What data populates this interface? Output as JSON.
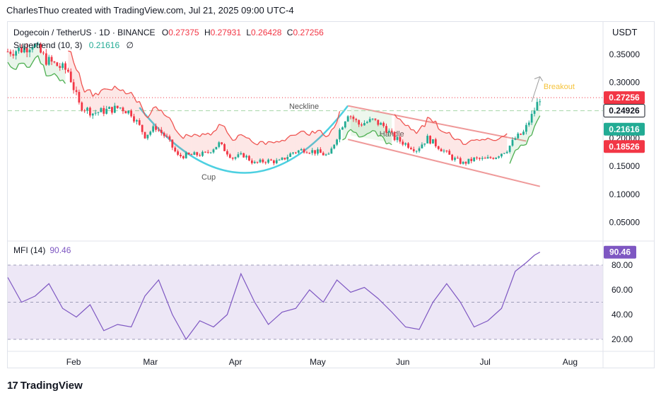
{
  "header": {
    "text": "CharlesThuo created with TradingView.com, Jul 21, 2025 09:00 UTC-4"
  },
  "legend": {
    "symbol": "Dogecoin / TetherUS · 1D · BINANCE",
    "o_label": "O",
    "o": "0.27375",
    "h_label": "H",
    "h": "0.27931",
    "l_label": "L",
    "l": "0.26428",
    "c_label": "C",
    "c": "0.27256",
    "supertrend_label": "Supertrend (10, 3)",
    "supertrend_value": "0.21616",
    "supertrend_extra": "∅"
  },
  "currency": "USDT",
  "mfi_legend": {
    "label": "MFI (14)",
    "value": "90.46"
  },
  "brand": {
    "logo": "17",
    "name": "TradingView"
  },
  "colors": {
    "up": "#22ab94",
    "down": "#f23645",
    "cup": "#4dd0e1",
    "channel": "#ef9a9a",
    "supertrend_up": "#4caf50",
    "supertrend_down": "#ef5350",
    "mfi": "#7e57c2",
    "mfi_band": "#ede7f6",
    "neckline": "#a5d6a7",
    "breakout": "#f5c33b"
  },
  "chart_data": [
    {
      "type": "candlestick",
      "title": "Dogecoin / TetherUS · 1D · BINANCE",
      "x_ticks": [
        "Feb",
        "Mar",
        "Apr",
        "May",
        "Jun",
        "Jul",
        "Aug"
      ],
      "y_ticks": [
        "0.35000",
        "0.30000",
        "0.25000",
        "0.20000",
        "0.15000",
        "0.10000",
        "0.05000"
      ],
      "ylim": [
        0.02,
        0.4
      ],
      "price_labels": [
        {
          "value": "0.27256",
          "color": "#f23645"
        },
        {
          "value": "0.24926",
          "color": "#131722"
        },
        {
          "value": "0.21616",
          "color": "#22ab94"
        },
        {
          "value": "0.18526",
          "color": "#f23645"
        }
      ],
      "annotations": [
        "Neckline",
        "Cup",
        "Handle",
        "Breakout"
      ],
      "close_path": [
        [
          "2025-01-08",
          0.355
        ],
        [
          "2025-01-14",
          0.36
        ],
        [
          "2025-01-17",
          0.37
        ],
        [
          "2025-01-22",
          0.34
        ],
        [
          "2025-01-26",
          0.33
        ],
        [
          "2025-01-30",
          0.32
        ],
        [
          "2025-02-03",
          0.26
        ],
        [
          "2025-02-08",
          0.245
        ],
        [
          "2025-02-13",
          0.25
        ],
        [
          "2025-02-18",
          0.255
        ],
        [
          "2025-02-22",
          0.245
        ],
        [
          "2025-02-27",
          0.205
        ],
        [
          "2025-03-03",
          0.22
        ],
        [
          "2025-03-07",
          0.2
        ],
        [
          "2025-03-11",
          0.168
        ],
        [
          "2025-03-16",
          0.17
        ],
        [
          "2025-03-21",
          0.172
        ],
        [
          "2025-03-26",
          0.19
        ],
        [
          "2025-03-31",
          0.165
        ],
        [
          "2025-04-04",
          0.17
        ],
        [
          "2025-04-08",
          0.155
        ],
        [
          "2025-04-12",
          0.16
        ],
        [
          "2025-04-17",
          0.158
        ],
        [
          "2025-04-22",
          0.175
        ],
        [
          "2025-04-26",
          0.18
        ],
        [
          "2025-05-01",
          0.175
        ],
        [
          "2025-05-05",
          0.168
        ],
        [
          "2025-05-09",
          0.215
        ],
        [
          "2025-05-12",
          0.245
        ],
        [
          "2025-05-16",
          0.225
        ],
        [
          "2025-05-21",
          0.232
        ],
        [
          "2025-05-25",
          0.222
        ],
        [
          "2025-05-29",
          0.2
        ],
        [
          "2025-06-02",
          0.19
        ],
        [
          "2025-06-06",
          0.18
        ],
        [
          "2025-06-10",
          0.2
        ],
        [
          "2025-06-14",
          0.185
        ],
        [
          "2025-06-19",
          0.165
        ],
        [
          "2025-06-23",
          0.155
        ],
        [
          "2025-06-27",
          0.163
        ],
        [
          "2025-07-01",
          0.162
        ],
        [
          "2025-07-05",
          0.168
        ],
        [
          "2025-07-09",
          0.18
        ],
        [
          "2025-07-12",
          0.2
        ],
        [
          "2025-07-15",
          0.21
        ],
        [
          "2025-07-18",
          0.24
        ],
        [
          "2025-07-21",
          0.27256
        ]
      ]
    },
    {
      "type": "line",
      "title": "MFI (14)",
      "y_ticks": [
        "80.00",
        "60.00",
        "40.00",
        "20.00"
      ],
      "ylim": [
        15,
        95
      ],
      "bands": [
        20,
        50,
        80
      ],
      "last_value": "90.46",
      "x": [
        "2025-01-08",
        "2025-01-13",
        "2025-01-18",
        "2025-01-23",
        "2025-01-28",
        "2025-02-02",
        "2025-02-07",
        "2025-02-12",
        "2025-02-17",
        "2025-02-22",
        "2025-02-27",
        "2025-03-04",
        "2025-03-09",
        "2025-03-14",
        "2025-03-19",
        "2025-03-24",
        "2025-03-29",
        "2025-04-03",
        "2025-04-08",
        "2025-04-13",
        "2025-04-18",
        "2025-04-23",
        "2025-04-28",
        "2025-05-03",
        "2025-05-08",
        "2025-05-13",
        "2025-05-18",
        "2025-05-23",
        "2025-05-28",
        "2025-06-02",
        "2025-06-07",
        "2025-06-12",
        "2025-06-17",
        "2025-06-22",
        "2025-06-27",
        "2025-07-02",
        "2025-07-07",
        "2025-07-12",
        "2025-07-16",
        "2025-07-19",
        "2025-07-21"
      ],
      "values": [
        70,
        50,
        55,
        65,
        45,
        38,
        48,
        27,
        32,
        30,
        55,
        68,
        40,
        20,
        35,
        30,
        40,
        73,
        50,
        32,
        42,
        45,
        60,
        50,
        68,
        58,
        62,
        53,
        42,
        30,
        28,
        50,
        65,
        50,
        30,
        35,
        45,
        75,
        82,
        88,
        90.46
      ]
    }
  ]
}
